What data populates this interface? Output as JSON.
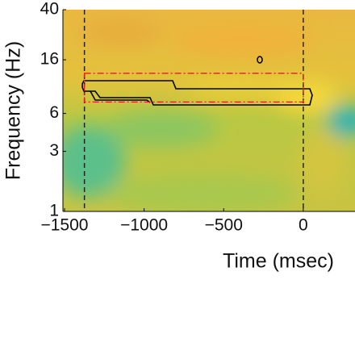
{
  "chart_data": {
    "type": "heatmap",
    "xlabel": "Time (msec)",
    "ylabel": "Frequency (Hz)",
    "xlim": [
      -1510,
      325
    ],
    "ylim": [
      1,
      40
    ],
    "log_y": true,
    "xticks": [
      {
        "value": -1500,
        "label": "−1500"
      },
      {
        "value": -1000,
        "label": "−1000"
      },
      {
        "value": -500,
        "label": "−500"
      },
      0
    ],
    "yticks": [
      1,
      3,
      6,
      16,
      40
    ],
    "event_lines": [
      -1375,
      0
    ],
    "box": {
      "x": [
        -1375,
        0
      ],
      "y": [
        7.4,
        12.5
      ],
      "color": "#e02020"
    }
  }
}
